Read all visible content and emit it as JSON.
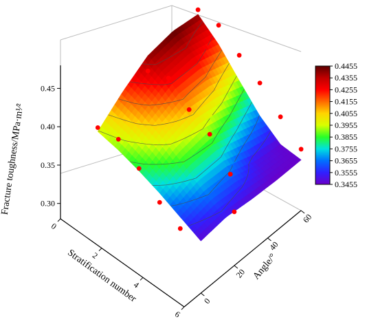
{
  "chart_data": {
    "type": "3d-surface",
    "title": "",
    "zlabel": "Fracture toughness/MPa·m¹⁄²",
    "xlabel": "Stratification number",
    "ylabel": "Angle/°",
    "x_ticks": [
      "0",
      "2",
      "4",
      "6"
    ],
    "y_ticks": [
      "0",
      "20",
      "40",
      "60"
    ],
    "z_ticks": [
      "0.30",
      "0.35",
      "0.40",
      "0.45"
    ],
    "xlim": [
      0,
      6
    ],
    "ylim": [
      -10,
      60
    ],
    "zlim": [
      0.28,
      0.48
    ],
    "surface": {
      "stratification": [
        1,
        2,
        3,
        4,
        5,
        6
      ],
      "angle": [
        0,
        15,
        30,
        45,
        60
      ],
      "toughness": [
        [
          0.395,
          0.42,
          0.44,
          0.445,
          0.44
        ],
        [
          0.39,
          0.412,
          0.428,
          0.43,
          0.42
        ],
        [
          0.382,
          0.4,
          0.41,
          0.405,
          0.392
        ],
        [
          0.372,
          0.385,
          0.388,
          0.378,
          0.365
        ],
        [
          0.36,
          0.368,
          0.365,
          0.352,
          0.347
        ],
        [
          0.348,
          0.352,
          0.348,
          0.346,
          0.346
        ]
      ]
    },
    "points": [
      {
        "stratification": 1,
        "angle": 0,
        "toughness": 0.4
      },
      {
        "stratification": 1,
        "angle": 30,
        "toughness": 0.42
      },
      {
        "stratification": 1,
        "angle": 60,
        "toughness": 0.446
      },
      {
        "stratification": 2,
        "angle": 0,
        "toughness": 0.404
      },
      {
        "stratification": 2,
        "angle": 30,
        "toughness": 0.43
      },
      {
        "stratification": 2,
        "angle": 60,
        "toughness": 0.445
      },
      {
        "stratification": 3,
        "angle": 0,
        "toughness": 0.385
      },
      {
        "stratification": 3,
        "angle": 30,
        "toughness": 0.408
      },
      {
        "stratification": 3,
        "angle": 60,
        "toughness": 0.425
      },
      {
        "stratification": 4,
        "angle": 0,
        "toughness": 0.36
      },
      {
        "stratification": 4,
        "angle": 30,
        "toughness": 0.395
      },
      {
        "stratification": 4,
        "angle": 60,
        "toughness": 0.408
      },
      {
        "stratification": 5,
        "angle": 0,
        "toughness": 0.345
      },
      {
        "stratification": 5,
        "angle": 30,
        "toughness": 0.362
      },
      {
        "stratification": 5,
        "angle": 60,
        "toughness": 0.383
      },
      {
        "stratification": 6,
        "angle": 20,
        "toughness": 0.35
      },
      {
        "stratification": 6,
        "angle": 60,
        "toughness": 0.36
      }
    ],
    "point_color": "#ff0000",
    "colorbar": {
      "levels": [
        "0.4455",
        "0.4355",
        "0.4255",
        "0.4155",
        "0.4055",
        "0.3955",
        "0.3855",
        "0.3755",
        "0.3655",
        "0.3555",
        "0.3455"
      ],
      "min": 0.3455,
      "max": 0.4455,
      "colors": [
        "#5b0000",
        "#c00000",
        "#ff0000",
        "#ff6a00",
        "#ffd400",
        "#d8ff00",
        "#28ff28",
        "#00e0e0",
        "#0070ff",
        "#3020ff",
        "#6a00c8"
      ],
      "color_stops": [
        0.4455,
        0.4355,
        0.4255,
        0.4155,
        0.4055,
        0.3955,
        0.3855,
        0.3755,
        0.3655,
        0.3555,
        0.3455
      ]
    },
    "grid": false,
    "legend": "colorbar right"
  }
}
